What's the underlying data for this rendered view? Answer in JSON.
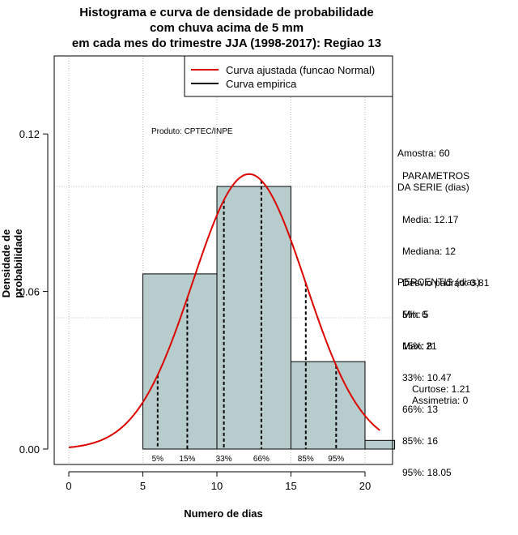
{
  "titles": [
    "Histograma e curva de densidade de probabilidade",
    "com chuva acima de 5 mm",
    "em cada mes do trimestre JJA (1998-2017): Regiao 13"
  ],
  "stats": {
    "sample": "Amostra: 60",
    "params_header_1": "PARAMETROS",
    "params_header_2": "DA SERIE (dias)",
    "params": [
      "Media: 12.17",
      "Mediana: 12",
      "Desvio padrao: 3.81",
      "Min: 5",
      "Max: 21"
    ],
    "percentis_header": "PERCENTIS (dias)",
    "percentis": [
      "5%: 6",
      "15%: 8",
      "33%: 10.47",
      "66%: 13",
      "85%: 16",
      "95%: 18.05"
    ],
    "curtose": "Curtose: 1.21",
    "assimetria": "Assimetria: 0"
  },
  "chart_data": {
    "type": "histogram",
    "xlabel": "Numero de dias",
    "ylabel": "Densidade de probabilidade",
    "xlim": [
      -1,
      22
    ],
    "ylim": [
      -0.005,
      0.13
    ],
    "x_ticks": [
      0,
      5,
      10,
      15,
      20
    ],
    "y_ticks": [
      0.0,
      0.06,
      0.12
    ],
    "y_tick_labels": [
      "0.00",
      "0.06",
      "0.12"
    ],
    "bins": [
      {
        "start": 5,
        "end": 10,
        "density": 0.0667
      },
      {
        "start": 10,
        "end": 15,
        "density": 0.1
      },
      {
        "start": 15,
        "end": 20,
        "density": 0.0333
      },
      {
        "start": 20,
        "end": 22,
        "density": 0.0033
      }
    ],
    "grid_x": [
      0,
      5,
      10,
      15,
      20
    ],
    "grid_y": [
      0.05,
      0.1
    ],
    "normal_fit": {
      "mean": 12.17,
      "sd": 3.81,
      "x_from": 0,
      "x_to": 21
    },
    "percentiles": [
      {
        "label": "5%",
        "value": 6
      },
      {
        "label": "15%",
        "value": 8
      },
      {
        "label": "33%",
        "value": 10.47
      },
      {
        "label": "66%",
        "value": 13
      },
      {
        "label": "85%",
        "value": 16
      },
      {
        "label": "95%",
        "value": 18.05
      }
    ],
    "legend": [
      {
        "label": "Curva ajustada (funcao Normal)",
        "color": "#dd0000"
      },
      {
        "label": "Curva empirica",
        "color": "#000000"
      }
    ],
    "legend_position": "top-right",
    "annotation": "Produto: CPTEC/INPE",
    "bar_color": "#b7cdcd",
    "curve_color": "#dd0000"
  }
}
